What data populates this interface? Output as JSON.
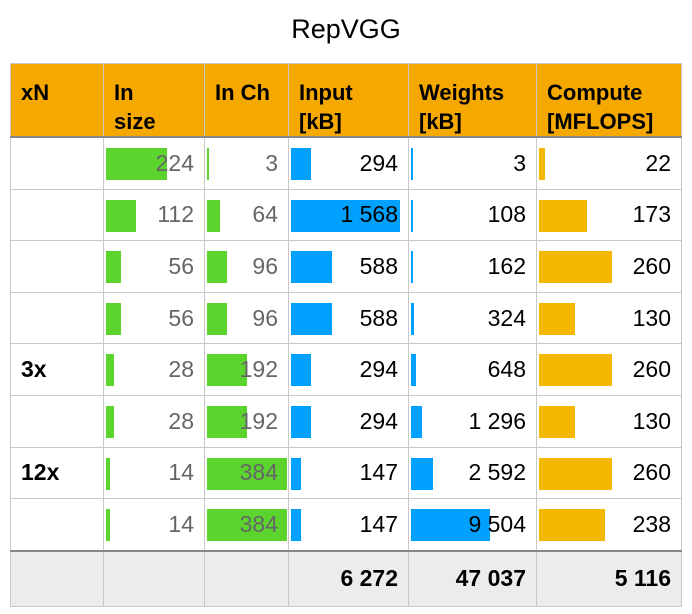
{
  "title": "RepVGG",
  "colors": {
    "header": "#f5a800",
    "green": "#5bd42e",
    "blue": "#00a0ff",
    "orange": "#f5b800"
  },
  "headers": [
    "xN",
    "In\nsize",
    "In Ch",
    "Input\n[kB]",
    "Weights\n[kB]",
    "Compute\n[MFLOPS]"
  ],
  "chart_data": {
    "type": "table",
    "title": "RepVGG",
    "columns": [
      "xN",
      "In size",
      "In Ch",
      "Input [kB]",
      "Weights [kB]",
      "Compute [MFLOPS]"
    ],
    "rows": [
      {
        "xN": "",
        "in_size": 224,
        "in_ch": 3,
        "input": 294,
        "weights": 3,
        "compute": 22,
        "labels": [
          "224",
          "3",
          "294",
          "3",
          "22"
        ]
      },
      {
        "xN": "",
        "in_size": 112,
        "in_ch": 64,
        "input": 1568,
        "weights": 108,
        "compute": 173,
        "labels": [
          "112",
          "64",
          "1 568",
          "108",
          "173"
        ]
      },
      {
        "xN": "",
        "in_size": 56,
        "in_ch": 96,
        "input": 588,
        "weights": 162,
        "compute": 260,
        "labels": [
          "56",
          "96",
          "588",
          "162",
          "260"
        ]
      },
      {
        "xN": "",
        "in_size": 56,
        "in_ch": 96,
        "input": 588,
        "weights": 324,
        "compute": 130,
        "labels": [
          "56",
          "96",
          "588",
          "324",
          "130"
        ]
      },
      {
        "xN": "3x",
        "in_size": 28,
        "in_ch": 192,
        "input": 294,
        "weights": 648,
        "compute": 260,
        "labels": [
          "28",
          "192",
          "294",
          "648",
          "260"
        ]
      },
      {
        "xN": "",
        "in_size": 28,
        "in_ch": 192,
        "input": 294,
        "weights": 1296,
        "compute": 130,
        "labels": [
          "28",
          "192",
          "294",
          "1 296",
          "130"
        ]
      },
      {
        "xN": "12x",
        "in_size": 14,
        "in_ch": 384,
        "input": 147,
        "weights": 2592,
        "compute": 260,
        "labels": [
          "14",
          "384",
          "147",
          "2 592",
          "260"
        ]
      },
      {
        "xN": "",
        "in_size": 14,
        "in_ch": 384,
        "input": 147,
        "weights": 9504,
        "compute": 238,
        "labels": [
          "14",
          "384",
          "147",
          "9 504",
          "238"
        ]
      }
    ],
    "totals": {
      "input": "6 272",
      "weights": "47 037",
      "compute": "5 116"
    }
  }
}
